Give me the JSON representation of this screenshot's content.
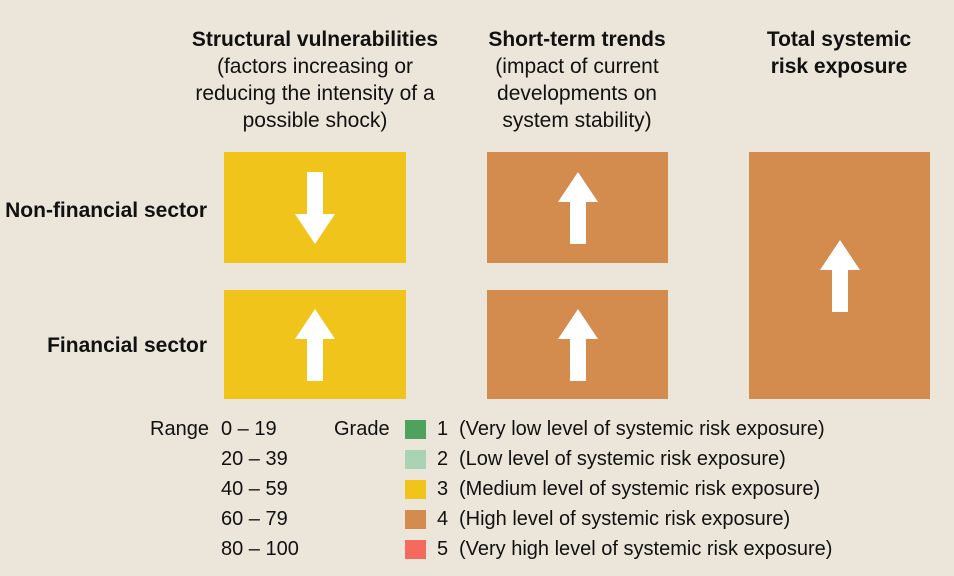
{
  "columns": {
    "structural": {
      "title": "Structural vulnerabilities",
      "sub1": "(factors increasing or",
      "sub2": "reducing the intensity of a",
      "sub3": "possible shock)"
    },
    "trends": {
      "title": "Short-term trends",
      "sub1": "(impact of current",
      "sub2": "developments on",
      "sub3": "system stability)"
    },
    "total": {
      "title1": "Total systemic",
      "title2": "risk exposure"
    }
  },
  "rows": {
    "nonfinancial": "Non-financial sector",
    "financial": "Financial sector"
  },
  "cells": {
    "structural_nonfinancial": {
      "grade": 3,
      "direction": "down",
      "color": "#f1c41c"
    },
    "structural_financial": {
      "grade": 3,
      "direction": "up",
      "color": "#f1c41c"
    },
    "trends_nonfinancial": {
      "grade": 4,
      "direction": "up",
      "color": "#d38b4e"
    },
    "trends_financial": {
      "grade": 4,
      "direction": "up",
      "color": "#d38b4e"
    },
    "total": {
      "grade": 4,
      "direction": "up",
      "color": "#d38b4e"
    }
  },
  "legend": {
    "range_label": "Range",
    "grade_label": "Grade",
    "ranges": [
      "0 – 19",
      "20 – 39",
      "40 – 59",
      "60 – 79",
      "80 – 100"
    ],
    "grades": [
      {
        "num": "1",
        "text": "(Very low level of systemic risk exposure)",
        "color": "#4ea25e"
      },
      {
        "num": "2",
        "text": "(Low level of systemic risk exposure)",
        "color": "#a9d3b2"
      },
      {
        "num": "3",
        "text": "(Medium level of systemic risk exposure)",
        "color": "#f1c41c"
      },
      {
        "num": "4",
        "text": "(High level of systemic risk exposure)",
        "color": "#d38b4e"
      },
      {
        "num": "5",
        "text": "(Very high level of systemic risk exposure)",
        "color": "#f46a5c"
      }
    ]
  }
}
